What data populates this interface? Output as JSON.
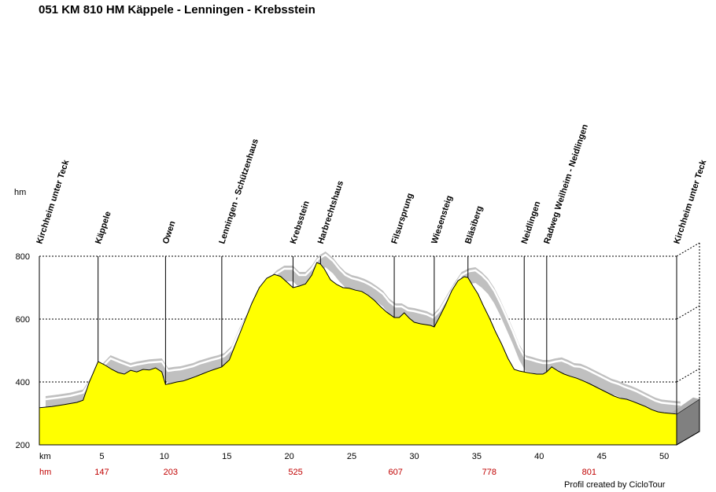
{
  "title": "051 KM 810 HM Käppele - Lenningen - Krebsstein",
  "credit": "Profil created by CicloTour",
  "chart_data": {
    "type": "area",
    "ylabel": "hm",
    "xlabel": "km",
    "xlim": [
      0,
      51
    ],
    "ylim": [
      200,
      800
    ],
    "x_ticks": [
      5,
      10,
      15,
      20,
      25,
      30,
      35,
      40,
      45,
      50
    ],
    "y_ticks": [
      200,
      400,
      600,
      800
    ],
    "grid": true,
    "gradient_label": "hm",
    "cumulative_climb": [
      {
        "km": 5,
        "hm": "147"
      },
      {
        "km": 10.5,
        "hm": "203"
      },
      {
        "km": 20.5,
        "hm": "525"
      },
      {
        "km": 28.5,
        "hm": "607"
      },
      {
        "km": 36,
        "hm": "778"
      },
      {
        "km": 44,
        "hm": "801"
      }
    ],
    "waypoints": [
      {
        "name": "Kirchheim unter Teck",
        "km": 0
      },
      {
        "name": "Käppele",
        "km": 4.7
      },
      {
        "name": "Owen",
        "km": 10.1
      },
      {
        "name": "Lenningen - Schützenhaus",
        "km": 14.6
      },
      {
        "name": "Krebsstein",
        "km": 20.3
      },
      {
        "name": "Harbrechtshaus",
        "km": 22.5
      },
      {
        "name": "Filsursprung",
        "km": 28.4
      },
      {
        "name": "Wiesensteig",
        "km": 31.6
      },
      {
        "name": "Bläsiberg",
        "km": 34.3
      },
      {
        "name": "Neidlingen",
        "km": 38.8
      },
      {
        "name": "Radweg Weilheim - Neidlingen",
        "km": 40.6
      },
      {
        "name": "Kirchheim unter Teck",
        "km": 51
      }
    ],
    "profile": {
      "x": [
        0,
        1,
        2,
        3,
        3.5,
        4,
        4.7,
        5.2,
        5.8,
        6.3,
        6.8,
        7.3,
        7.8,
        8.3,
        8.8,
        9.3,
        9.8,
        10.1,
        10.5,
        11.0,
        11.5,
        12.0,
        12.5,
        13.0,
        13.5,
        14.0,
        14.6,
        15.2,
        15.8,
        16.4,
        17.0,
        17.6,
        18.2,
        18.8,
        19.3,
        19.8,
        20.3,
        20.8,
        21.3,
        21.8,
        22.2,
        22.5,
        22.8,
        23.3,
        23.8,
        24.3,
        24.8,
        25.3,
        25.8,
        26.3,
        26.8,
        27.3,
        27.8,
        28.4,
        28.8,
        29.2,
        29.6,
        30.0,
        30.5,
        31.0,
        31.3,
        31.6,
        32.0,
        32.5,
        33.0,
        33.5,
        34.0,
        34.3,
        34.7,
        35.1,
        35.5,
        36.0,
        36.5,
        37.0,
        37.5,
        38.0,
        38.4,
        38.8,
        39.3,
        39.8,
        40.3,
        40.6,
        41.0,
        41.5,
        42.0,
        42.5,
        43.0,
        43.5,
        44.0,
        44.5,
        45.0,
        45.5,
        46.0,
        46.5,
        47.0,
        47.5,
        48.0,
        48.5,
        49.0,
        49.5,
        50.0,
        50.5,
        51
      ],
      "y": [
        318,
        322,
        328,
        335,
        342,
        400,
        465,
        455,
        440,
        430,
        425,
        437,
        432,
        440,
        438,
        445,
        432,
        392,
        395,
        400,
        403,
        410,
        417,
        425,
        433,
        440,
        448,
        470,
        530,
        590,
        650,
        700,
        730,
        742,
        736,
        718,
        700,
        705,
        712,
        740,
        780,
        775,
        760,
        725,
        710,
        700,
        698,
        692,
        688,
        676,
        660,
        640,
        622,
        605,
        605,
        620,
        603,
        590,
        585,
        582,
        580,
        575,
        605,
        645,
        690,
        722,
        735,
        732,
        705,
        680,
        645,
        605,
        560,
        520,
        475,
        440,
        435,
        432,
        428,
        425,
        425,
        432,
        448,
        435,
        425,
        418,
        412,
        404,
        395,
        385,
        375,
        365,
        355,
        348,
        345,
        338,
        330,
        322,
        312,
        305,
        302,
        300,
        298
      ]
    },
    "gradient_band": {
      "x": [
        0.5,
        1.5,
        2.5,
        3.5,
        4.5,
        5.7,
        6.5,
        7.3,
        7.8,
        8.8,
        9.8,
        10.3,
        10.8,
        11.3,
        11.8,
        12.3,
        12.8,
        13.3,
        13.8,
        14.3,
        14.8,
        15.4,
        16.0,
        16.8,
        17.6,
        18.4,
        19.0,
        19.6,
        20.3,
        20.8,
        21.3,
        21.8,
        22.3,
        22.9,
        23.5,
        24.0,
        24.5,
        25.0,
        25.5,
        26.0,
        26.5,
        27.0,
        27.5,
        28.0,
        28.5,
        29.0,
        29.5,
        30.0,
        30.5,
        31.0,
        31.5,
        32.0,
        32.6,
        33.2,
        33.8,
        34.4,
        34.9,
        35.4,
        35.9,
        36.4,
        36.9,
        37.4,
        37.9,
        38.4,
        38.9,
        39.4,
        39.8,
        40.3,
        40.8,
        41.3,
        41.8,
        42.3,
        42.8,
        43.3,
        43.8,
        44.3,
        44.8,
        45.3,
        45.8,
        46.3,
        46.8,
        47.3,
        47.8,
        48.3,
        48.8,
        49.3,
        49.8,
        50.3,
        50.8,
        51.3
      ],
      "y": [
        345,
        350,
        356,
        366,
        425,
        475,
        462,
        450,
        455,
        462,
        465,
        435,
        438,
        440,
        445,
        450,
        458,
        464,
        470,
        475,
        482,
        505,
        560,
        620,
        680,
        720,
        745,
        760,
        760,
        740,
        740,
        760,
        790,
        805,
        785,
        760,
        740,
        730,
        725,
        718,
        708,
        695,
        680,
        655,
        640,
        640,
        628,
        625,
        620,
        615,
        605,
        625,
        665,
        705,
        740,
        752,
        755,
        740,
        720,
        690,
        650,
        605,
        560,
        510,
        475,
        470,
        465,
        460,
        460,
        465,
        468,
        460,
        450,
        448,
        440,
        430,
        420,
        410,
        400,
        394,
        385,
        378,
        370,
        360,
        350,
        340,
        334,
        332,
        330,
        328
      ]
    }
  }
}
